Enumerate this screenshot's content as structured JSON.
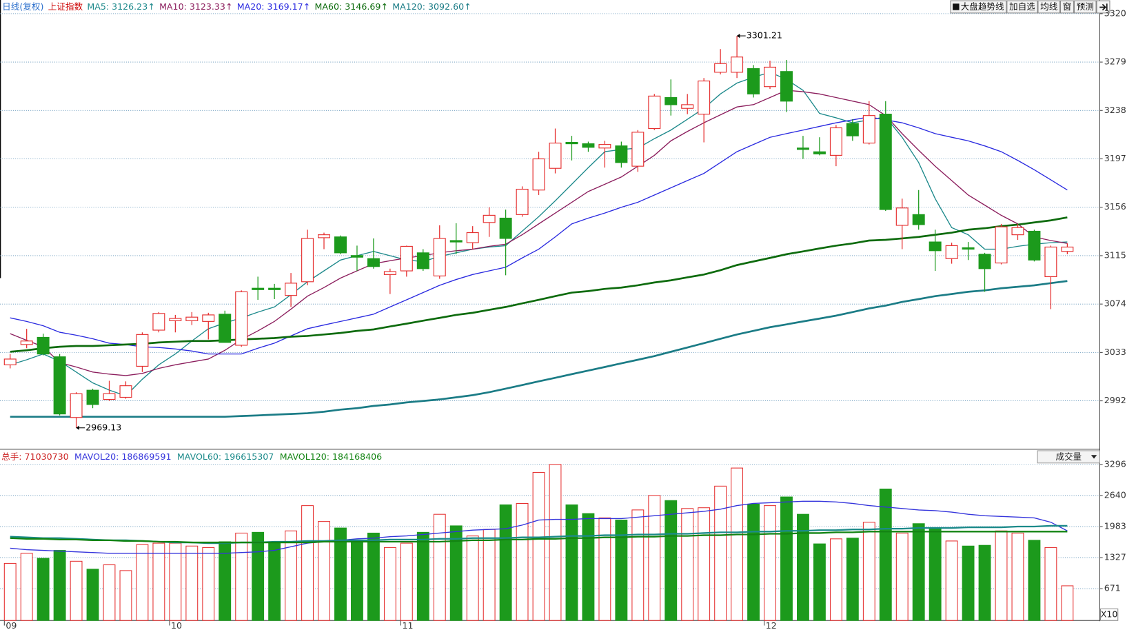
{
  "toolbar": [
    "大盘趋势线",
    "加自选",
    "均线",
    "窗",
    "预测"
  ],
  "chart_data": [
    {
      "type": "candlestick",
      "title": "日线(复权)",
      "symbol": "上证指数",
      "up_color": "#e52e2e",
      "down_color": "#1c9a1c",
      "grid": true,
      "ylim": [
        2952.2,
        3331.6
      ],
      "yticks": [
        2992,
        3033,
        3074,
        3115,
        3156,
        3197,
        3238,
        3279,
        3320
      ],
      "open": [
        3022.5,
        3039.7,
        3045.8,
        3029.3,
        2977.9,
        3001,
        2993.2,
        2995,
        3021.3,
        3051.9,
        3059.9,
        3059.9,
        3059.3,
        3065.4,
        3039.1,
        3087.4,
        3087.4,
        3081.3,
        3092.9,
        3130.2,
        3130.9,
        3115.1,
        3112.5,
        3099,
        3102.1,
        3117.4,
        3097.8,
        3127.8,
        3126,
        3143.1,
        3146.8,
        3149.8,
        3170.6,
        3189,
        3211,
        3209.8,
        3206.2,
        3208,
        3190.8,
        3222.7,
        3249,
        3239.8,
        3234.9,
        3270.4,
        3270.4,
        3273.5,
        3258.2,
        3271,
        3206.2,
        3203,
        3200,
        3227,
        3210.4,
        3234.9,
        3140.7,
        3149.8,
        3126.6,
        3112.5,
        3121.7,
        3116.2,
        3108.8,
        3132.7,
        3135.7,
        3097.2,
        3118.6
      ],
      "high": [
        3031.7,
        3053,
        3048.9,
        3031.7,
        2999.3,
        3002.3,
        3009,
        3008.5,
        3050,
        3067.2,
        3064.8,
        3067.2,
        3066.6,
        3068.4,
        3085.6,
        3097.2,
        3091.1,
        3100.3,
        3137,
        3134.5,
        3132.1,
        3123.5,
        3129.6,
        3104,
        3123.5,
        3120.5,
        3140.7,
        3142.5,
        3140,
        3156,
        3154,
        3173.7,
        3203,
        3222.7,
        3216.5,
        3211.6,
        3212.3,
        3211.6,
        3221.4,
        3252,
        3264.3,
        3252,
        3265.5,
        3290,
        3301.21,
        3276.5,
        3280.2,
        3280.8,
        3216.5,
        3215.3,
        3225.7,
        3230.6,
        3245.9,
        3245.9,
        3163.3,
        3170.6,
        3137,
        3126,
        3126.6,
        3117.4,
        3141.9,
        3141.9,
        3137,
        3123.5,
        3125.4
      ],
      "low": [
        3019.5,
        3036.6,
        3030.5,
        2979.7,
        2969.13,
        2985.8,
        2991.9,
        2993.8,
        3016.4,
        3050,
        3050,
        3056.2,
        3044,
        3041.5,
        3037.8,
        3077.6,
        3078.2,
        3071.5,
        3089.9,
        3120.5,
        3116.2,
        3102.1,
        3104,
        3082.5,
        3097.2,
        3102.1,
        3095.4,
        3116.2,
        3120.5,
        3130.9,
        3098.4,
        3148,
        3166.4,
        3184.7,
        3195.7,
        3203,
        3189.6,
        3189.6,
        3186,
        3221.4,
        3233.7,
        3234.9,
        3211,
        3268.6,
        3265.5,
        3249,
        3256.3,
        3236.7,
        3197,
        3200,
        3190.8,
        3212.3,
        3209.2,
        3152.9,
        3120.5,
        3137,
        3102.1,
        3108.2,
        3111.3,
        3084.4,
        3107.6,
        3128.4,
        3110.1,
        3069.7,
        3116.2
      ],
      "close": [
        3027.4,
        3042.7,
        3031.7,
        2980.9,
        2998,
        2988.9,
        2998.1,
        3004.8,
        3048.2,
        3066,
        3061.8,
        3062.9,
        3064.8,
        3041.5,
        3084.4,
        3086.2,
        3086.2,
        3091.7,
        3129.6,
        3132.7,
        3117.4,
        3113.7,
        3105.8,
        3101.5,
        3122.9,
        3104,
        3129.6,
        3126.6,
        3134.5,
        3149.2,
        3129.6,
        3171.3,
        3197,
        3210.4,
        3209.8,
        3206.8,
        3209.2,
        3193.9,
        3219.6,
        3250.2,
        3242.9,
        3242.9,
        3263,
        3277.7,
        3283.3,
        3252,
        3274.7,
        3245.9,
        3205,
        3201.2,
        3223.3,
        3216.5,
        3233.7,
        3154.1,
        3155.4,
        3141.3,
        3119.2,
        3123.5,
        3120.5,
        3104,
        3139.4,
        3138.8,
        3111.3,
        3122.3,
        3122.3
      ],
      "high_labels": [
        null,
        null,
        null,
        null,
        null,
        null,
        null,
        null,
        null,
        null,
        null,
        null,
        null,
        null,
        null,
        null,
        null,
        null,
        null,
        null,
        null,
        null,
        null,
        null,
        null,
        null,
        null,
        null,
        null,
        null,
        null,
        null,
        null,
        null,
        null,
        null,
        null,
        null,
        null,
        null,
        null,
        null,
        null,
        null,
        "3301.21",
        null,
        null,
        null,
        null,
        null,
        null,
        null,
        null,
        null,
        null,
        null,
        null,
        null,
        null,
        null,
        null,
        null,
        null,
        null,
        null
      ],
      "low_labels": [
        null,
        null,
        null,
        null,
        "2969.13",
        null,
        null,
        null,
        null,
        null,
        null,
        null,
        null,
        null,
        null,
        null,
        null,
        null,
        null,
        null,
        null,
        null,
        null,
        null,
        null,
        null,
        null,
        null,
        null,
        null,
        null,
        null,
        null,
        null,
        null,
        null,
        null,
        null,
        null,
        null,
        null,
        null,
        null,
        null,
        null,
        null,
        null,
        null,
        null,
        null,
        null,
        null,
        null,
        null,
        null,
        null,
        null,
        null,
        null,
        null,
        null,
        null,
        null,
        null,
        null
      ],
      "series": [
        {
          "name": "MA5: 3126.23↑",
          "color": "#1e8a8c",
          "width": 1.3,
          "values": [
            3022.5,
            3026.8,
            3031.7,
            3025.6,
            3016.4,
            3007.2,
            3001.1,
            2996.2,
            3010.3,
            3022.5,
            3031.7,
            3042.7,
            3053.1,
            3058,
            3062.3,
            3067.2,
            3071.5,
            3081.9,
            3092.9,
            3102.1,
            3111.3,
            3115,
            3118.6,
            3115,
            3111.3,
            3110.1,
            3114.3,
            3117.4,
            3120.5,
            3122.3,
            3123.5,
            3135.8,
            3148,
            3161.5,
            3175.5,
            3189.6,
            3203.1,
            3204.9,
            3206.1,
            3214.1,
            3221.4,
            3230.6,
            3239.8,
            3252,
            3261.2,
            3266.1,
            3270.4,
            3264.3,
            3255.1,
            3235.5,
            3231.8,
            3227.6,
            3230,
            3232.5,
            3215.3,
            3193.9,
            3163.3,
            3138.8,
            3132.7,
            3120.5,
            3120.5,
            3122.9,
            3124.7,
            3126,
            3126.6
          ]
        },
        {
          "name": "MA10: 3123.33↑",
          "color": "#8c1f5e",
          "width": 1.3,
          "values": [
            3048.9,
            3043.3,
            3037.8,
            3024.4,
            3020.7,
            3016.4,
            3014.6,
            3013.4,
            3015.2,
            3019.5,
            3022.5,
            3025,
            3027.4,
            3034.8,
            3044,
            3051.3,
            3059.3,
            3069.7,
            3080.7,
            3088,
            3096,
            3102.1,
            3108.2,
            3110.7,
            3113.1,
            3115,
            3117.4,
            3119.2,
            3120.5,
            3122.9,
            3124.7,
            3132.7,
            3141.9,
            3151.1,
            3160.2,
            3169.4,
            3175.5,
            3181.7,
            3190.8,
            3200,
            3212.3,
            3220.2,
            3227.6,
            3234.3,
            3241,
            3242.9,
            3249,
            3255.1,
            3253.9,
            3252,
            3249,
            3245.9,
            3242.9,
            3233.7,
            3218.4,
            3204.3,
            3190.8,
            3178.6,
            3166.4,
            3157.8,
            3149.2,
            3141.9,
            3130.9,
            3127.8,
            3125.4
          ]
        },
        {
          "name": "MA20: 3169.17↑",
          "color": "#2b2be0",
          "width": 1.3,
          "values": [
            3062.3,
            3059.3,
            3055.6,
            3050.1,
            3047.6,
            3044.6,
            3040.9,
            3039.7,
            3037.8,
            3037.2,
            3036,
            3034.2,
            3031.7,
            3031.7,
            3031.7,
            3036.6,
            3040.9,
            3047,
            3053.1,
            3056.2,
            3059.3,
            3062.3,
            3065.4,
            3071.5,
            3077.6,
            3083.7,
            3089.9,
            3094.8,
            3099,
            3102.1,
            3105.2,
            3113.1,
            3120.5,
            3130.9,
            3141.9,
            3146.8,
            3151.1,
            3156,
            3160.2,
            3166.4,
            3172.5,
            3178.6,
            3184.7,
            3193.9,
            3203.1,
            3209.2,
            3215.3,
            3218.4,
            3221.4,
            3224.5,
            3227.6,
            3230,
            3232.5,
            3230,
            3227.6,
            3223.3,
            3218.4,
            3215.3,
            3212.3,
            3208,
            3203.1,
            3195.7,
            3187.8,
            3179.2,
            3170.6
          ]
        },
        {
          "name": "MA60: 3146.69↑",
          "color": "#0d6b0d",
          "width": 2.6,
          "values": [
            3033.6,
            3034.8,
            3036.6,
            3037.8,
            3038.5,
            3038.5,
            3039.1,
            3039.7,
            3040.3,
            3041.5,
            3042.1,
            3042.7,
            3042.7,
            3043.3,
            3044,
            3044.6,
            3045.2,
            3046.4,
            3047,
            3048.2,
            3049.5,
            3051.3,
            3052.5,
            3055,
            3057.4,
            3059.9,
            3062.3,
            3064.8,
            3066.6,
            3069.1,
            3071.5,
            3074.6,
            3077.6,
            3080.7,
            3083.7,
            3085,
            3086.8,
            3088,
            3089.9,
            3092.3,
            3094.1,
            3096.6,
            3099,
            3102.7,
            3107,
            3110.1,
            3113.1,
            3116.2,
            3118.6,
            3121.1,
            3123.5,
            3125.4,
            3127.8,
            3128.4,
            3129.6,
            3130.9,
            3132.7,
            3134.5,
            3137,
            3138.2,
            3140,
            3141.3,
            3143.1,
            3144.9,
            3147.4
          ]
        },
        {
          "name": "MA120: 3092.60↑",
          "color": "#1b7c86",
          "width": 2.6,
          "values": [
            2978.5,
            2978.5,
            2978.5,
            2978.5,
            2978.5,
            2978.5,
            2978.5,
            2978.5,
            2978.5,
            2978.5,
            2978.5,
            2978.5,
            2978.5,
            2978.5,
            2979.1,
            2979.7,
            2980.3,
            2980.9,
            2981.5,
            2982.8,
            2984.6,
            2985.8,
            2987.7,
            2988.9,
            2990.7,
            2991.9,
            2993.2,
            2995,
            2996.8,
            2999.3,
            3002.3,
            3005.4,
            3008.5,
            3011.5,
            3014.6,
            3017.6,
            3020.7,
            3023.8,
            3026.8,
            3029.9,
            3033.6,
            3037.2,
            3040.9,
            3044.6,
            3048.2,
            3051.3,
            3054.4,
            3056.8,
            3059.3,
            3061.7,
            3064.2,
            3067.2,
            3070.3,
            3072.7,
            3075.8,
            3078.2,
            3080.7,
            3082.5,
            3084.4,
            3085.6,
            3087.4,
            3088.6,
            3089.9,
            3091.7,
            3093.5
          ]
        }
      ]
    },
    {
      "type": "volume",
      "name": "总手: 71030730",
      "color": "#cc2222",
      "indicator": "成交量",
      "unit": "X10",
      "grid": true,
      "categories": [
        "09",
        null,
        null,
        null,
        null,
        null,
        null,
        null,
        null,
        null,
        "10",
        null,
        null,
        null,
        null,
        null,
        null,
        null,
        null,
        null,
        null,
        null,
        null,
        null,
        "11",
        null,
        null,
        null,
        null,
        null,
        null,
        null,
        null,
        null,
        null,
        null,
        null,
        null,
        null,
        null,
        null,
        null,
        null,
        null,
        null,
        null,
        "12",
        null,
        null,
        null,
        null,
        null,
        null,
        null,
        null,
        null,
        null,
        null,
        null,
        null,
        null,
        null,
        null,
        null,
        null
      ],
      "ylim": [
        0,
        3571
      ],
      "yticks": [
        671,
        1327,
        1983,
        2640,
        3296
      ],
      "values": [
        1206,
        1419,
        1312,
        1480,
        1251,
        1083,
        1175,
        1053,
        1602,
        1633,
        1633,
        1572,
        1541,
        1663,
        1846,
        1862,
        1633,
        1892,
        2426,
        2091,
        1953,
        1663,
        1846,
        1541,
        1633,
        1862,
        2243,
        1999,
        1785,
        1923,
        2442,
        2472,
        3128,
        3296,
        2442,
        2258,
        2167,
        2121,
        2335,
        2640,
        2533,
        2365,
        2381,
        2838,
        3220,
        2457,
        2426,
        2609,
        2243,
        1618,
        1724,
        1740,
        2075,
        2777,
        1846,
        2045,
        1953,
        1679,
        1572,
        1587,
        1892,
        1846,
        1694,
        1541,
        732
      ],
      "series": [
        {
          "name": "MAVOL20: 186869591",
          "color": "#3535dc",
          "values": [
            1526,
            1495,
            1480,
            1465,
            1450,
            1434,
            1419,
            1419,
            1419,
            1419,
            1419,
            1419,
            1419,
            1419,
            1434,
            1450,
            1480,
            1557,
            1633,
            1663,
            1694,
            1724,
            1740,
            1770,
            1785,
            1816,
            1846,
            1877,
            1908,
            1923,
            1938,
            2014,
            2121,
            2136,
            2136,
            2152,
            2152,
            2152,
            2182,
            2213,
            2243,
            2274,
            2304,
            2350,
            2426,
            2472,
            2487,
            2503,
            2518,
            2518,
            2503,
            2472,
            2426,
            2396,
            2365,
            2335,
            2320,
            2289,
            2243,
            2213,
            2197,
            2182,
            2167,
            2075,
            1892
          ]
        },
        {
          "name": "MAVOL60: 196615307",
          "color": "#1b8a8a",
          "values": [
            1770,
            1755,
            1740,
            1740,
            1724,
            1709,
            1694,
            1694,
            1679,
            1663,
            1648,
            1648,
            1633,
            1633,
            1648,
            1648,
            1663,
            1663,
            1679,
            1679,
            1694,
            1694,
            1694,
            1709,
            1709,
            1709,
            1724,
            1724,
            1740,
            1740,
            1740,
            1755,
            1755,
            1770,
            1785,
            1785,
            1801,
            1801,
            1816,
            1816,
            1831,
            1831,
            1846,
            1862,
            1862,
            1877,
            1877,
            1892,
            1892,
            1908,
            1908,
            1923,
            1923,
            1938,
            1938,
            1953,
            1953,
            1953,
            1969,
            1969,
            1969,
            1984,
            1984,
            1999,
            1999
          ]
        },
        {
          "name": "MAVOL120: 184168406",
          "color": "#138413",
          "values": [
            1740,
            1724,
            1724,
            1709,
            1709,
            1694,
            1694,
            1679,
            1679,
            1663,
            1663,
            1648,
            1648,
            1648,
            1648,
            1648,
            1648,
            1648,
            1648,
            1663,
            1663,
            1663,
            1663,
            1663,
            1663,
            1663,
            1663,
            1679,
            1694,
            1694,
            1709,
            1709,
            1724,
            1724,
            1740,
            1740,
            1755,
            1755,
            1770,
            1770,
            1785,
            1785,
            1801,
            1801,
            1816,
            1816,
            1831,
            1831,
            1846,
            1846,
            1862,
            1862,
            1877,
            1877,
            1877,
            1877,
            1877,
            1877,
            1877,
            1877,
            1877,
            1877,
            1877,
            1877,
            1877
          ]
        }
      ]
    }
  ]
}
